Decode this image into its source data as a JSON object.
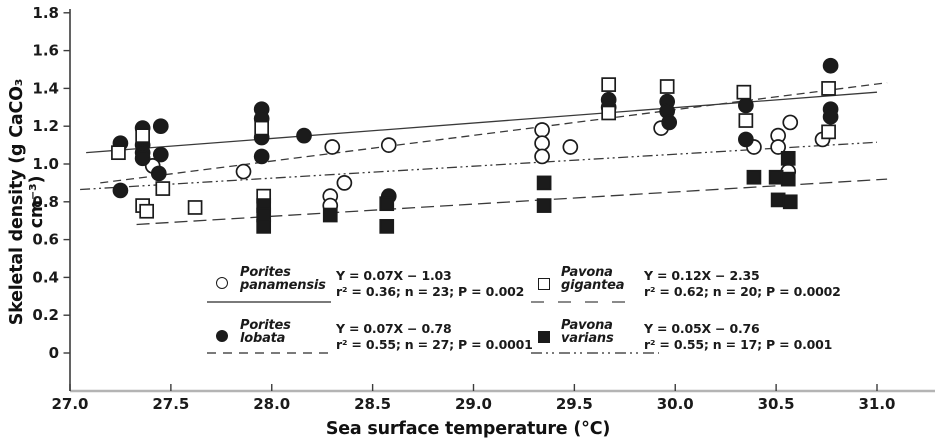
{
  "chart_data": {
    "type": "scatter",
    "title": "",
    "xlabel": "Sea surface temperature  (°C)",
    "ylabel": "Skeletal density  (g CaCO₃  cm⁻³)",
    "xlim": [
      27.0,
      31.3
    ],
    "ylim": [
      -0.2,
      1.8
    ],
    "grid": false,
    "x_ticks": [
      27.0,
      27.5,
      28.0,
      28.5,
      29.0,
      29.5,
      30.0,
      30.5,
      31.0
    ],
    "x_tick_labels": [
      "27.0",
      "27.5",
      "28.0",
      "28.5",
      "29.0",
      "29.5",
      "30.0",
      "30.5",
      "31.0"
    ],
    "y_ticks": [
      0,
      0.2,
      0.4,
      0.6,
      0.8,
      1.0,
      1.2,
      1.4,
      1.6,
      1.8
    ],
    "y_tick_labels": [
      "0",
      "0.2",
      "0.4",
      "0.6",
      "0.8",
      "1.0",
      "1.2",
      "1.4",
      "1.6",
      "1.8"
    ],
    "legend_position": "bottom-center-inside",
    "series": [
      {
        "name": "Porites panamensis",
        "name_lines": [
          "Porites",
          "panamensis"
        ],
        "marker": "open-circle",
        "legend_line_style": "solid",
        "equation": "Y = 0.07X − 1.03",
        "stats": "r² = 0.36; n = 23; P = 0.002",
        "points": [
          [
            27.41,
            0.99
          ],
          [
            27.86,
            0.96
          ],
          [
            28.3,
            1.09
          ],
          [
            28.29,
            0.83
          ],
          [
            28.29,
            0.78
          ],
          [
            28.36,
            0.9
          ],
          [
            28.58,
            1.1
          ],
          [
            29.34,
            1.18
          ],
          [
            29.34,
            1.11
          ],
          [
            29.34,
            1.04
          ],
          [
            29.48,
            1.09
          ],
          [
            29.93,
            1.19
          ],
          [
            30.39,
            1.09
          ],
          [
            30.51,
            1.15
          ],
          [
            30.51,
            1.09
          ],
          [
            30.57,
            1.22
          ],
          [
            30.73,
            1.13
          ],
          [
            30.56,
            0.96
          ]
        ]
      },
      {
        "name": "Porites lobata",
        "name_lines": [
          "Porites",
          "lobata"
        ],
        "marker": "filled-circle",
        "legend_line_style": "long-dash",
        "equation": "Y = 0.07X − 0.78",
        "stats": "r² = 0.55; n = 27; P = 0.0001",
        "points": [
          [
            27.25,
            1.11
          ],
          [
            27.25,
            0.86
          ],
          [
            27.36,
            1.19
          ],
          [
            27.45,
            1.2
          ],
          [
            27.36,
            1.1
          ],
          [
            27.36,
            1.06
          ],
          [
            27.36,
            1.03
          ],
          [
            27.45,
            1.05
          ],
          [
            27.44,
            0.95
          ],
          [
            27.95,
            1.29
          ],
          [
            27.95,
            1.24
          ],
          [
            27.95,
            1.14
          ],
          [
            27.95,
            1.04
          ],
          [
            28.16,
            1.15
          ],
          [
            28.58,
            0.83
          ],
          [
            29.67,
            1.34
          ],
          [
            29.67,
            1.3
          ],
          [
            29.96,
            1.33
          ],
          [
            29.96,
            1.28
          ],
          [
            29.97,
            1.22
          ],
          [
            30.35,
            1.31
          ],
          [
            30.35,
            1.13
          ],
          [
            30.77,
            1.52
          ],
          [
            30.77,
            1.29
          ],
          [
            30.77,
            1.25
          ]
        ]
      },
      {
        "name": "Pavona gigantea",
        "name_lines": [
          "Pavona",
          "gigantea"
        ],
        "marker": "open-square",
        "legend_line_style": "spaced-dash",
        "equation": "Y = 0.12X − 2.35",
        "stats": "r² = 0.62; n = 20; P = 0.0002",
        "points": [
          [
            27.24,
            1.06
          ],
          [
            27.36,
            1.15
          ],
          [
            27.36,
            0.78
          ],
          [
            27.38,
            0.75
          ],
          [
            27.46,
            0.87
          ],
          [
            27.62,
            0.77
          ],
          [
            27.95,
            1.19
          ],
          [
            27.96,
            0.83
          ],
          [
            29.67,
            1.42
          ],
          [
            29.67,
            1.27
          ],
          [
            29.96,
            1.41
          ],
          [
            30.34,
            1.38
          ],
          [
            30.35,
            1.23
          ],
          [
            30.76,
            1.4
          ],
          [
            30.76,
            1.17
          ]
        ]
      },
      {
        "name": "Pavona varians",
        "name_lines": [
          "Pavona",
          "varians"
        ],
        "marker": "filled-square",
        "legend_line_style": "dash-dot-dot",
        "equation": "Y = 0.05X − 0.76",
        "stats": "r² = 0.55; n = 17; P = 0.001",
        "points": [
          [
            27.96,
            0.78
          ],
          [
            27.96,
            0.73
          ],
          [
            27.96,
            0.67
          ],
          [
            28.29,
            0.73
          ],
          [
            28.57,
            0.79
          ],
          [
            28.57,
            0.67
          ],
          [
            29.35,
            0.9
          ],
          [
            29.35,
            0.78
          ],
          [
            30.39,
            0.93
          ],
          [
            30.5,
            0.93
          ],
          [
            30.56,
            0.92
          ],
          [
            30.51,
            0.81
          ],
          [
            30.57,
            0.8
          ],
          [
            30.56,
            1.03
          ]
        ]
      }
    ],
    "trendlines": [
      {
        "style": "solid",
        "from": [
          27.08,
          1.06
        ],
        "to": [
          31.0,
          1.38
        ]
      },
      {
        "style": "medium-dash",
        "from": [
          27.15,
          0.9
        ],
        "to": [
          31.05,
          1.43
        ]
      },
      {
        "style": "dash-dot-dot",
        "from": [
          27.05,
          0.865
        ],
        "to": [
          31.0,
          1.115
        ]
      },
      {
        "style": "long-dash",
        "from": [
          27.33,
          0.68
        ],
        "to": [
          31.05,
          0.92
        ]
      }
    ],
    "colors": {
      "marker": "#1b1b1b",
      "trendline": "#3a3a3a",
      "x_axis_line": "#b4b4b4",
      "y_axis_line": "#3c3c3c",
      "text": "#1a1a1a"
    }
  }
}
